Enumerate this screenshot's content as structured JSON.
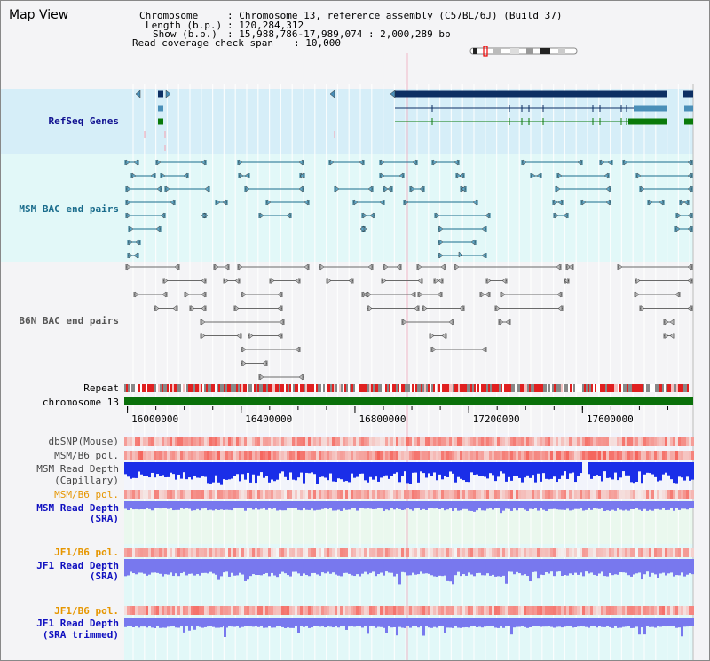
{
  "header": {
    "title": "Map View",
    "chromosome_label": "Chromosome",
    "chromosome_value": ": Chromosome 13, reference assembly (C57BL/6J) (Build 37)",
    "length_label": "Length (b.p.)",
    "length_value": ": 120,284,312",
    "show_label": "Show (b.p.)",
    "show_value": ": 15,988,786-17,989,074 : 2,000,289 bp",
    "coverage_label": "Read coverage check span",
    "coverage_value": ": 10,000"
  },
  "tracks": {
    "refseq": "RefSeq Genes",
    "msm_bac": "MSM BAC end pairs",
    "b6n_bac": "B6N BAC end pairs",
    "repeat": "Repeat",
    "chromosome": "chromosome 13",
    "dbsnp": "dbSNP(Mouse)",
    "msm_b6_pol_1": "MSM/B6 pol.",
    "msm_read_depth_cap_1": "MSM Read Depth",
    "msm_read_depth_cap_2": "(Capillary)",
    "msm_b6_pol_2": "MSM/B6 pol.",
    "msm_read_depth_sra_1": "MSM Read Depth",
    "msm_read_depth_sra_2": "(SRA)",
    "jf1_b6_pol_1": "JF1/B6 pol.",
    "jf1_read_depth_1": "JF1 Read Depth",
    "jf1_read_depth_2": "(SRA)",
    "jf1_b6_pol_2": "JF1/B6 pol.",
    "jf1_read_depth_trim_1": "JF1 Read Depth",
    "jf1_read_depth_trim_2": "(SRA trimmed)"
  },
  "axis": {
    "ticks": [
      {
        "value": 16000000,
        "label": "16000000"
      },
      {
        "value": 16400000,
        "label": "16400000"
      },
      {
        "value": 16800000,
        "label": "16800000"
      },
      {
        "value": 17200000,
        "label": "17200000"
      },
      {
        "value": 17600000,
        "label": "17600000"
      }
    ],
    "range": [
      15988786,
      17989074
    ]
  },
  "colors": {
    "refseq_bg": "#d6eef8",
    "msm_bg": "#e2f8f8",
    "gene_dark": "#0d2f63",
    "gene_mid": "#4a8fb8",
    "gene_green": "#0a7a0a",
    "msm_line": "#1a6c8c",
    "b6n_line": "#6a6a6a",
    "chromosome_bar": "#0a700a",
    "repeat_red": "#e02020",
    "depth_blue": "#1a2ee8",
    "depth_light": "#7878ee",
    "pol_orange_label": "#e69600",
    "depth_label": "#1010c0",
    "refseq_label": "#101090",
    "msm_label": "#1a6c8c",
    "b6n_label": "#555555"
  }
}
